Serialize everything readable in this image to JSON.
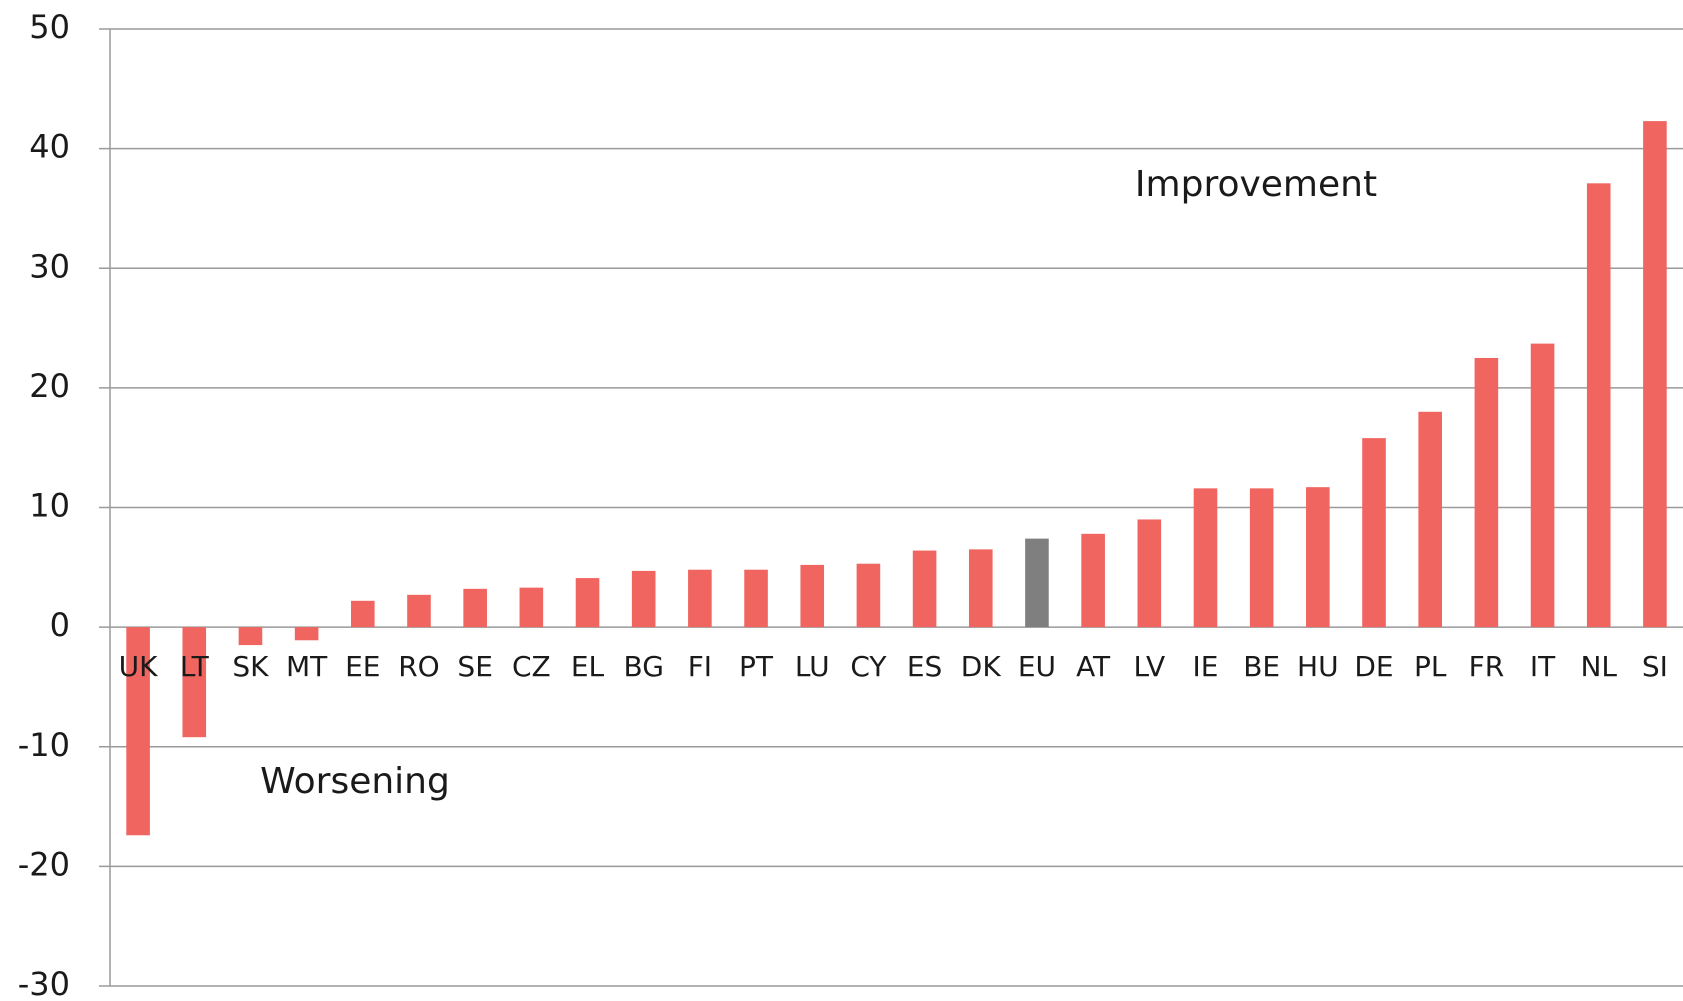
{
  "chart_data": {
    "type": "bar",
    "categories": [
      "UK",
      "LT",
      "SK",
      "MT",
      "EE",
      "RO",
      "SE",
      "CZ",
      "EL",
      "BG",
      "FI",
      "PT",
      "LU",
      "CY",
      "ES",
      "DK",
      "EU",
      "AT",
      "LV",
      "IE",
      "BE",
      "HU",
      "DE",
      "PL",
      "FR",
      "IT",
      "NL",
      "SI"
    ],
    "values": [
      -17.4,
      -9.2,
      -1.5,
      -1.1,
      2.2,
      2.7,
      3.2,
      3.3,
      4.1,
      4.7,
      4.8,
      4.8,
      5.2,
      5.3,
      6.4,
      6.5,
      7.4,
      7.8,
      9.0,
      11.6,
      11.6,
      11.7,
      15.8,
      18.0,
      22.5,
      23.7,
      37.1,
      42.3
    ],
    "colors": [
      "#f0655f",
      "#f0655f",
      "#f0655f",
      "#f0655f",
      "#f0655f",
      "#f0655f",
      "#f0655f",
      "#f0655f",
      "#f0655f",
      "#f0655f",
      "#f0655f",
      "#f0655f",
      "#f0655f",
      "#f0655f",
      "#f0655f",
      "#f0655f",
      "#7f7f7f",
      "#f0655f",
      "#f0655f",
      "#f0655f",
      "#f0655f",
      "#f0655f",
      "#f0655f",
      "#f0655f",
      "#f0655f",
      "#f0655f",
      "#f0655f",
      "#f0655f"
    ],
    "ylim": [
      -30,
      50
    ],
    "yticks": [
      -30,
      -20,
      -10,
      0,
      10,
      20,
      30,
      40,
      50
    ],
    "grid": true,
    "annotations": [
      "Improvement",
      "Worsening"
    ]
  }
}
